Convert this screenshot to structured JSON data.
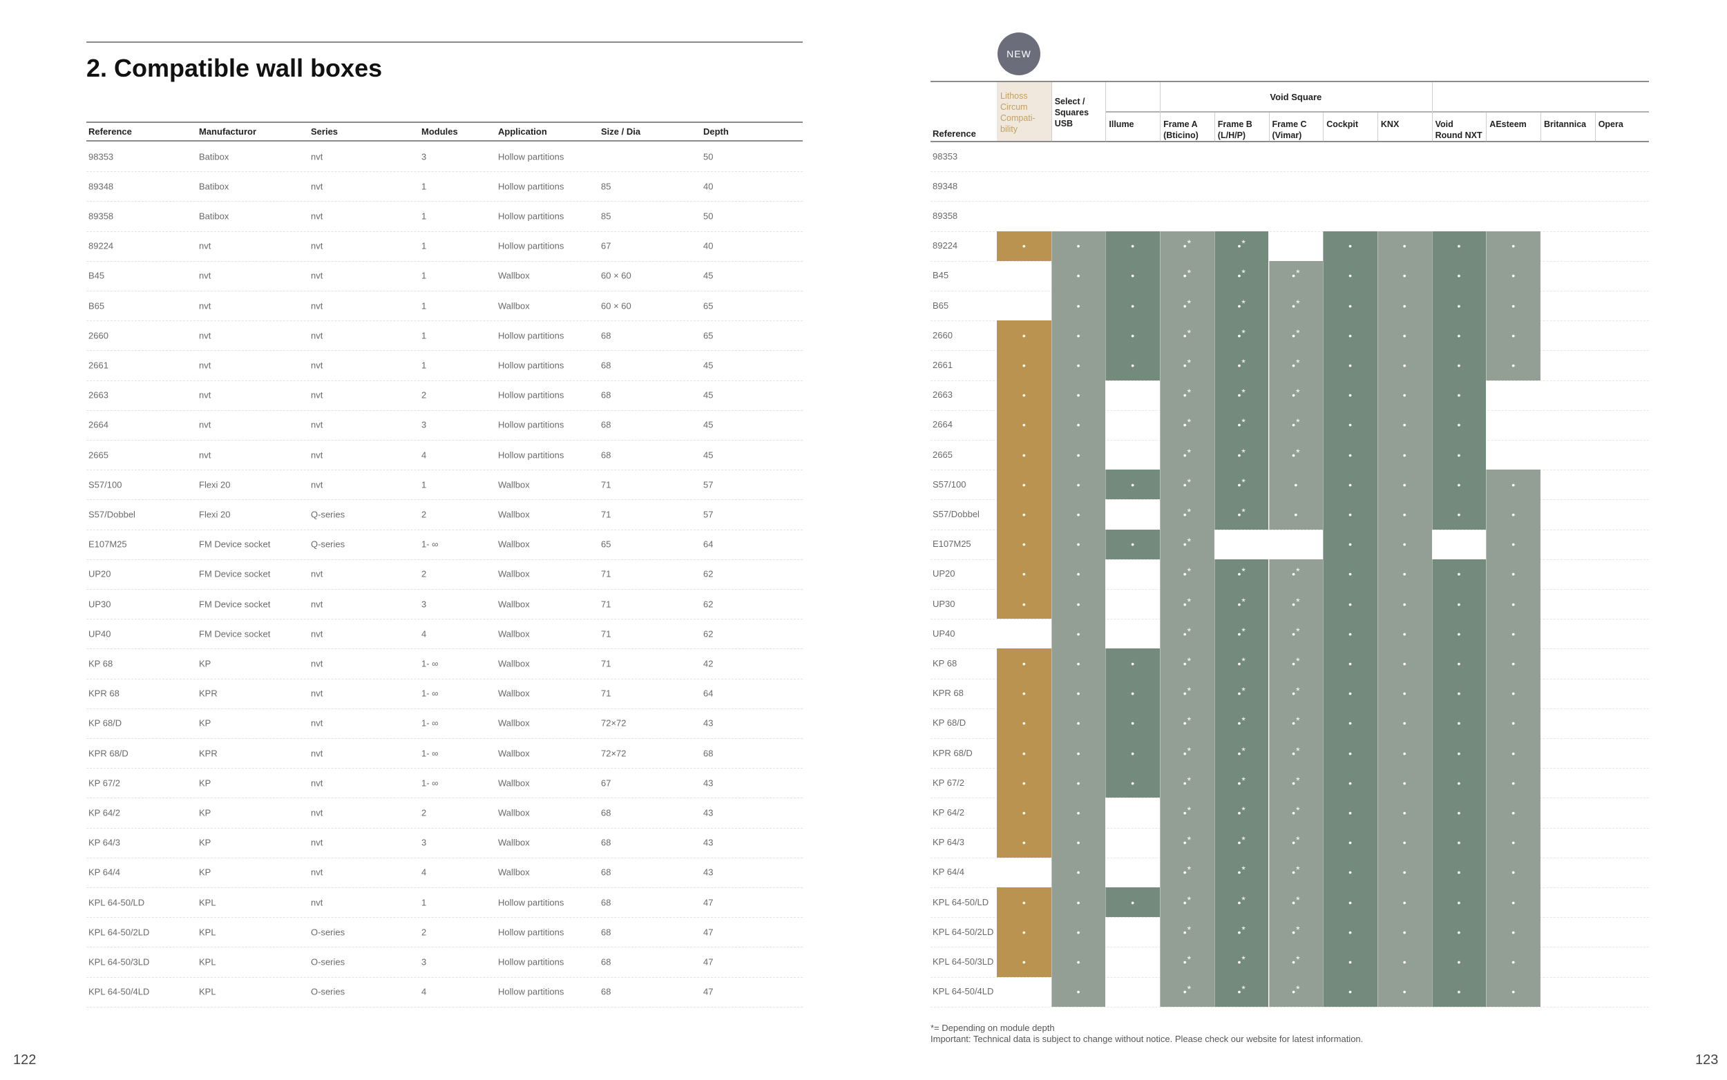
{
  "title": "2. Compatible wall boxes",
  "page_left": "122",
  "page_right": "123",
  "new_badge": "NEW",
  "left_table": {
    "headers": [
      "Reference",
      "Manufacturor",
      "Series",
      "Modules",
      "Application",
      "Size / Dia",
      "Depth"
    ],
    "rows": [
      [
        "98353",
        "Batibox",
        "nvt",
        "3",
        "Hollow partitions",
        "",
        "50"
      ],
      [
        "89348",
        "Batibox",
        "nvt",
        "1",
        "Hollow partitions",
        "85",
        "40"
      ],
      [
        "89358",
        "Batibox",
        "nvt",
        "1",
        "Hollow partitions",
        "85",
        "50"
      ],
      [
        "89224",
        "nvt",
        "nvt",
        "1",
        "Hollow partitions",
        "67",
        "40"
      ],
      [
        "B45",
        "nvt",
        "nvt",
        "1",
        "Wallbox",
        "60 × 60",
        "45"
      ],
      [
        "B65",
        "nvt",
        "nvt",
        "1",
        "Wallbox",
        "60 × 60",
        "65"
      ],
      [
        "2660",
        "nvt",
        "nvt",
        "1",
        "Hollow partitions",
        "68",
        "65"
      ],
      [
        "2661",
        "nvt",
        "nvt",
        "1",
        "Hollow partitions",
        "68",
        "45"
      ],
      [
        "2663",
        "nvt",
        "nvt",
        "2",
        "Hollow partitions",
        "68",
        "45"
      ],
      [
        "2664",
        "nvt",
        "nvt",
        "3",
        "Hollow partitions",
        "68",
        "45"
      ],
      [
        "2665",
        "nvt",
        "nvt",
        "4",
        "Hollow partitions",
        "68",
        "45"
      ],
      [
        "S57/100",
        "Flexi 20",
        "nvt",
        "1",
        "Wallbox",
        "71",
        "57"
      ],
      [
        "S57/Dobbel",
        "Flexi 20",
        "Q-series",
        "2",
        "Wallbox",
        "71",
        "57"
      ],
      [
        "E107M25",
        "FM Device socket",
        "Q-series",
        "1- ∞",
        "Wallbox",
        "65",
        "64"
      ],
      [
        "UP20",
        "FM Device socket",
        "nvt",
        "2",
        "Wallbox",
        "71",
        "62"
      ],
      [
        "UP30",
        "FM Device socket",
        "nvt",
        "3",
        "Wallbox",
        "71",
        "62"
      ],
      [
        "UP40",
        "FM Device socket",
        "nvt",
        "4",
        "Wallbox",
        "71",
        "62"
      ],
      [
        "KP 68",
        "KP",
        "nvt",
        "1- ∞",
        "Wallbox",
        "71",
        "42"
      ],
      [
        "KPR 68",
        "KPR",
        "nvt",
        "1- ∞",
        "Wallbox",
        "71",
        "64"
      ],
      [
        "KP 68/D",
        "KP",
        "nvt",
        "1- ∞",
        "Wallbox",
        "72×72",
        "43"
      ],
      [
        "KPR 68/D",
        "KPR",
        "nvt",
        "1- ∞",
        "Wallbox",
        "72×72",
        "68"
      ],
      [
        "KP 67/2",
        "KP",
        "nvt",
        "1- ∞",
        "Wallbox",
        "67",
        "43"
      ],
      [
        "KP 64/2",
        "KP",
        "nvt",
        "2",
        "Wallbox",
        "68",
        "43"
      ],
      [
        "KP 64/3",
        "KP",
        "nvt",
        "3",
        "Wallbox",
        "68",
        "43"
      ],
      [
        "KP 64/4",
        "KP",
        "nvt",
        "4",
        "Wallbox",
        "68",
        "43"
      ],
      [
        "KPL 64-50/LD",
        "KPL",
        "nvt",
        "1",
        "Hollow partitions",
        "68",
        "47"
      ],
      [
        "KPL 64-50/2LD",
        "KPL",
        "O-series",
        "2",
        "Hollow partitions",
        "68",
        "47"
      ],
      [
        "KPL 64-50/3LD",
        "KPL",
        "O-series",
        "3",
        "Hollow partitions",
        "68",
        "47"
      ],
      [
        "KPL 64-50/4LD",
        "KPL",
        "O-series",
        "4",
        "Hollow partitions",
        "68",
        "47"
      ]
    ]
  },
  "compat_table": {
    "reference_header": "Reference",
    "group_header": "Void Square",
    "columns": [
      "Lithoss Circum Compati-bility",
      "Select / Squares USB",
      "Illume",
      "Frame A (Bticino)",
      "Frame B (L/H/P)",
      "Frame C (Vimar)",
      "Cockpit",
      "KNX",
      "Void Round NXT",
      "AEsteem",
      "Britannica",
      "Opera"
    ],
    "column_colors": [
      "#b9934f",
      "#939f94",
      "#748a7d",
      "#939f94",
      "#748a7d",
      "#939f94",
      "#748a7d",
      "#939f94",
      "#748a7d",
      "#939f94",
      "#939f94",
      "#748a7d"
    ],
    "mark": "•",
    "star": "*",
    "rows": [
      {
        "ref": "98353",
        "cells": [
          "",
          "",
          "",
          "",
          "",
          "",
          "",
          "",
          "",
          "",
          "",
          ""
        ]
      },
      {
        "ref": "89348",
        "cells": [
          "",
          "",
          "",
          "",
          "",
          "",
          "",
          "",
          "",
          "",
          "",
          ""
        ]
      },
      {
        "ref": "89358",
        "cells": [
          "",
          "",
          "",
          "",
          "",
          "",
          "",
          "",
          "",
          "",
          "",
          ""
        ]
      },
      {
        "ref": "89224",
        "cells": [
          "•",
          "•",
          "•",
          "•*",
          "•*",
          "",
          "•",
          "•",
          "•",
          "•",
          "",
          ""
        ]
      },
      {
        "ref": "B45",
        "cells": [
          "",
          "•",
          "•",
          "•*",
          "•*",
          "•*",
          "•",
          "•",
          "•",
          "•",
          "",
          ""
        ]
      },
      {
        "ref": "B65",
        "cells": [
          "",
          "•",
          "•",
          "•*",
          "•*",
          "•*",
          "•",
          "•",
          "•",
          "•",
          "",
          ""
        ]
      },
      {
        "ref": "2660",
        "cells": [
          "•",
          "•",
          "•",
          "•*",
          "•*",
          "•*",
          "•",
          "•",
          "•",
          "•",
          "",
          ""
        ]
      },
      {
        "ref": "2661",
        "cells": [
          "•",
          "•",
          "•",
          "•*",
          "•*",
          "•*",
          "•",
          "•",
          "•",
          "•",
          "",
          ""
        ]
      },
      {
        "ref": "2663",
        "cells": [
          "•",
          "•",
          "",
          "•*",
          "•*",
          "•*",
          "•",
          "•",
          "•",
          "",
          "",
          ""
        ]
      },
      {
        "ref": "2664",
        "cells": [
          "•",
          "•",
          "",
          "•*",
          "•*",
          "•*",
          "•",
          "•",
          "•",
          "",
          "",
          ""
        ]
      },
      {
        "ref": "2665",
        "cells": [
          "•",
          "•",
          "",
          "•*",
          "•*",
          "•*",
          "•",
          "•",
          "•",
          "",
          "",
          ""
        ]
      },
      {
        "ref": "S57/100",
        "cells": [
          "•",
          "•",
          "•",
          "•*",
          "•*",
          "•",
          "•",
          "•",
          "•",
          "•",
          "",
          ""
        ]
      },
      {
        "ref": "S57/Dobbel",
        "cells": [
          "•",
          "•",
          "",
          "•*",
          "•*",
          "•",
          "•",
          "•",
          "•",
          "•",
          "",
          ""
        ]
      },
      {
        "ref": "E107M25",
        "cells": [
          "•",
          "•",
          "•",
          "•*",
          "",
          "",
          "•",
          "•",
          "",
          "•",
          "",
          ""
        ]
      },
      {
        "ref": "UP20",
        "cells": [
          "•",
          "•",
          "",
          "•*",
          "•*",
          "•*",
          "•",
          "•",
          "•",
          "•",
          "",
          ""
        ]
      },
      {
        "ref": "UP30",
        "cells": [
          "•",
          "•",
          "",
          "•*",
          "•*",
          "•*",
          "•",
          "•",
          "•",
          "•",
          "",
          ""
        ]
      },
      {
        "ref": "UP40",
        "cells": [
          "",
          "•",
          "",
          "•*",
          "•*",
          "•*",
          "•",
          "•",
          "•",
          "•",
          "",
          ""
        ]
      },
      {
        "ref": "KP 68",
        "cells": [
          "•",
          "•",
          "•",
          "•*",
          "•*",
          "•*",
          "•",
          "•",
          "•",
          "•",
          "",
          ""
        ]
      },
      {
        "ref": "KPR 68",
        "cells": [
          "•",
          "•",
          "•",
          "•*",
          "•*",
          "•*",
          "•",
          "•",
          "•",
          "•",
          "",
          ""
        ]
      },
      {
        "ref": "KP 68/D",
        "cells": [
          "•",
          "•",
          "•",
          "•*",
          "•*",
          "•*",
          "•",
          "•",
          "•",
          "•",
          "",
          ""
        ]
      },
      {
        "ref": "KPR 68/D",
        "cells": [
          "•",
          "•",
          "•",
          "•*",
          "•*",
          "•*",
          "•",
          "•",
          "•",
          "•",
          "",
          ""
        ]
      },
      {
        "ref": "KP 67/2",
        "cells": [
          "•",
          "•",
          "•",
          "•*",
          "•*",
          "•*",
          "•",
          "•",
          "•",
          "•",
          "",
          ""
        ]
      },
      {
        "ref": "KP 64/2",
        "cells": [
          "•",
          "•",
          "",
          "•*",
          "•*",
          "•*",
          "•",
          "•",
          "•",
          "•",
          "",
          ""
        ]
      },
      {
        "ref": "KP 64/3",
        "cells": [
          "•",
          "•",
          "",
          "•*",
          "•*",
          "•*",
          "•",
          "•",
          "•",
          "•",
          "",
          ""
        ]
      },
      {
        "ref": "KP 64/4",
        "cells": [
          "",
          "•",
          "",
          "•*",
          "•*",
          "•*",
          "•",
          "•",
          "•",
          "•",
          "",
          ""
        ]
      },
      {
        "ref": "KPL 64-50/LD",
        "cells": [
          "•",
          "•",
          "•",
          "•*",
          "•*",
          "•*",
          "•",
          "•",
          "•",
          "•",
          "",
          ""
        ]
      },
      {
        "ref": "KPL 64-50/2LD",
        "cells": [
          "•",
          "•",
          "",
          "•*",
          "•*",
          "•*",
          "•",
          "•",
          "•",
          "•",
          "",
          ""
        ]
      },
      {
        "ref": "KPL 64-50/3LD",
        "cells": [
          "•",
          "•",
          "",
          "•*",
          "•*",
          "•*",
          "•",
          "•",
          "•",
          "•",
          "",
          ""
        ]
      },
      {
        "ref": "KPL 64-50/4LD",
        "cells": [
          "",
          "•",
          "",
          "•*",
          "•*",
          "•*",
          "•",
          "•",
          "•",
          "•",
          "",
          ""
        ]
      }
    ]
  },
  "footnotes": [
    "*= Depending on module depth",
    "Important: Technical data is subject to change without notice. Please check our website for latest information."
  ]
}
